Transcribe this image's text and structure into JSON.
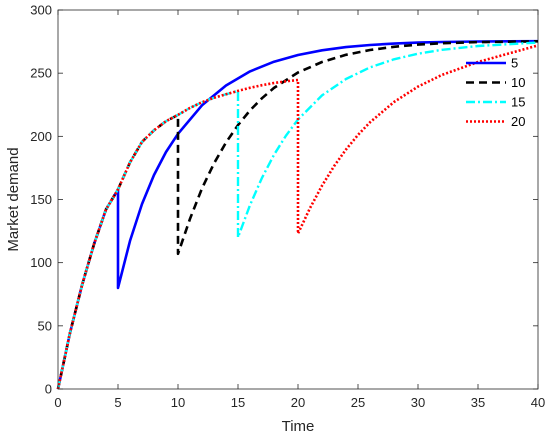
{
  "chart_data": {
    "type": "line",
    "title": "",
    "xlabel": "Time",
    "ylabel": "Market demand",
    "xlim": [
      0,
      40
    ],
    "ylim": [
      0,
      300
    ],
    "xticks": [
      0,
      5,
      10,
      15,
      20,
      25,
      30,
      35,
      40
    ],
    "yticks": [
      0,
      50,
      100,
      150,
      200,
      250,
      300
    ],
    "grid": false,
    "legend": "top-right",
    "series": [
      {
        "name": "5",
        "color": "#0000ff",
        "dash": "solid",
        "x": [
          0,
          1,
          2,
          3,
          4,
          5,
          5,
          6,
          7,
          8,
          9,
          10,
          12,
          14,
          16,
          18,
          20,
          22,
          24,
          26,
          28,
          30,
          32,
          35,
          40
        ],
        "y": [
          0,
          44.4,
          82.2,
          114.6,
          142.2,
          158,
          80,
          117.2,
          146.4,
          169.4,
          187.6,
          202,
          224.6,
          240.2,
          251.4,
          259.1,
          264.4,
          268.1,
          270.6,
          272.3,
          273.4,
          274.2,
          274.7,
          275.1,
          275.3
        ]
      },
      {
        "name": "10",
        "color": "#000000",
        "dash": "dashed",
        "x": [
          0,
          1,
          2,
          3,
          4,
          5,
          6,
          7,
          8,
          9,
          10,
          10,
          11,
          12,
          13,
          14,
          15,
          16,
          17,
          18,
          20,
          22,
          24,
          26,
          28,
          30,
          32,
          35,
          40
        ],
        "y": [
          0,
          44.4,
          82.2,
          114.6,
          142.2,
          158,
          179.4,
          195.6,
          204.8,
          212,
          217,
          107,
          134.7,
          158.8,
          178.6,
          195.1,
          208.9,
          220.5,
          230.2,
          238.3,
          250.5,
          258.8,
          264.5,
          268.3,
          270.9,
          272.6,
          273.7,
          274.6,
          275.2
        ]
      },
      {
        "name": "15",
        "color": "#00ffff",
        "dash": "dash-dot",
        "x": [
          0,
          1,
          2,
          3,
          4,
          5,
          6,
          7,
          8,
          9,
          10,
          11,
          12,
          13,
          14,
          15,
          15,
          16,
          17,
          18,
          19,
          20,
          22,
          24,
          26,
          28,
          30,
          32,
          35,
          40
        ],
        "y": [
          0,
          44.4,
          82.2,
          114.6,
          142.2,
          158,
          179.4,
          195.6,
          204.8,
          212,
          217,
          222.5,
          227,
          230.5,
          233.3,
          236,
          120,
          145.6,
          167.2,
          185.4,
          200.6,
          213.3,
          232.4,
          245.4,
          254.6,
          261,
          265.4,
          268.5,
          271.5,
          274.3
        ]
      },
      {
        "name": "20",
        "color": "#ff0000",
        "dash": "dotted",
        "x": [
          0,
          1,
          2,
          3,
          4,
          5,
          6,
          7,
          8,
          9,
          10,
          11,
          12,
          13,
          14,
          15,
          16,
          17,
          18,
          19,
          20,
          20,
          21,
          22,
          23,
          24,
          25,
          26,
          28,
          30,
          32,
          35,
          40
        ],
        "y": [
          0,
          44.4,
          82.2,
          114.6,
          142.2,
          158,
          179.4,
          195.6,
          204.8,
          212,
          217,
          222.5,
          227,
          230.5,
          233.3,
          236,
          238.4,
          240.5,
          242.2,
          243.6,
          244.6,
          123,
          143.2,
          160.9,
          176.3,
          189.6,
          201.1,
          211.1,
          227.2,
          239.4,
          248.6,
          258.8,
          272
        ]
      }
    ]
  }
}
